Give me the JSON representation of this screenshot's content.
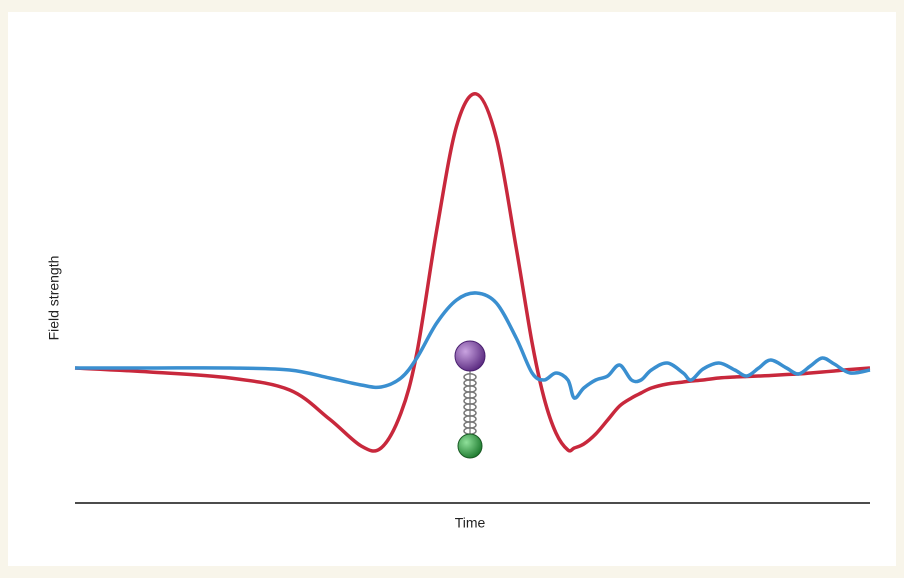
{
  "chart_data": {
    "type": "line",
    "x_label": "Time",
    "y_label": "Field strength",
    "x": [
      0,
      9.4,
      19.5,
      27,
      32,
      36,
      38.5,
      41,
      43,
      45.5,
      48,
      50.5,
      53,
      55.5,
      57.5,
      59,
      60.5,
      62,
      62.8,
      64,
      65.5,
      67,
      68.5,
      70,
      71.2,
      72.5,
      74.5,
      76.5,
      77.5,
      79,
      81,
      83,
      84.5,
      86,
      87.5,
      89.5,
      91,
      92.5,
      94,
      95.5,
      97.5,
      100
    ],
    "xlim": [
      0,
      100
    ],
    "ylim": [
      -1.35,
      3.0
    ],
    "series": [
      {
        "color": "#c8283c",
        "values": [
          0,
          -0.04,
          -0.1,
          -0.22,
          -0.51,
          -0.78,
          -0.8,
          -0.45,
          0.15,
          1.38,
          2.42,
          2.74,
          2.3,
          1.2,
          0.25,
          -0.3,
          -0.65,
          -0.82,
          -0.8,
          -0.76,
          -0.66,
          -0.52,
          -0.38,
          -0.3,
          -0.25,
          -0.2,
          -0.16,
          -0.14,
          -0.13,
          -0.12,
          -0.1,
          -0.09,
          -0.085,
          -0.08,
          -0.075,
          -0.065,
          -0.06,
          -0.05,
          -0.04,
          -0.03,
          -0.015,
          0
        ]
      },
      {
        "color": "#3a8fd0",
        "values": [
          0,
          0,
          0,
          -0.02,
          -0.1,
          -0.17,
          -0.19,
          -0.1,
          0.1,
          0.45,
          0.68,
          0.75,
          0.65,
          0.3,
          -0.05,
          -0.12,
          -0.05,
          -0.12,
          -0.3,
          -0.2,
          -0.12,
          -0.08,
          0.03,
          -0.12,
          -0.12,
          -0.02,
          0.05,
          -0.05,
          -0.12,
          -0.01,
          0.05,
          -0.02,
          -0.08,
          0,
          0.08,
          0,
          -0.06,
          0.02,
          0.1,
          0.04,
          -0.05,
          -0.02
        ]
      }
    ]
  }
}
